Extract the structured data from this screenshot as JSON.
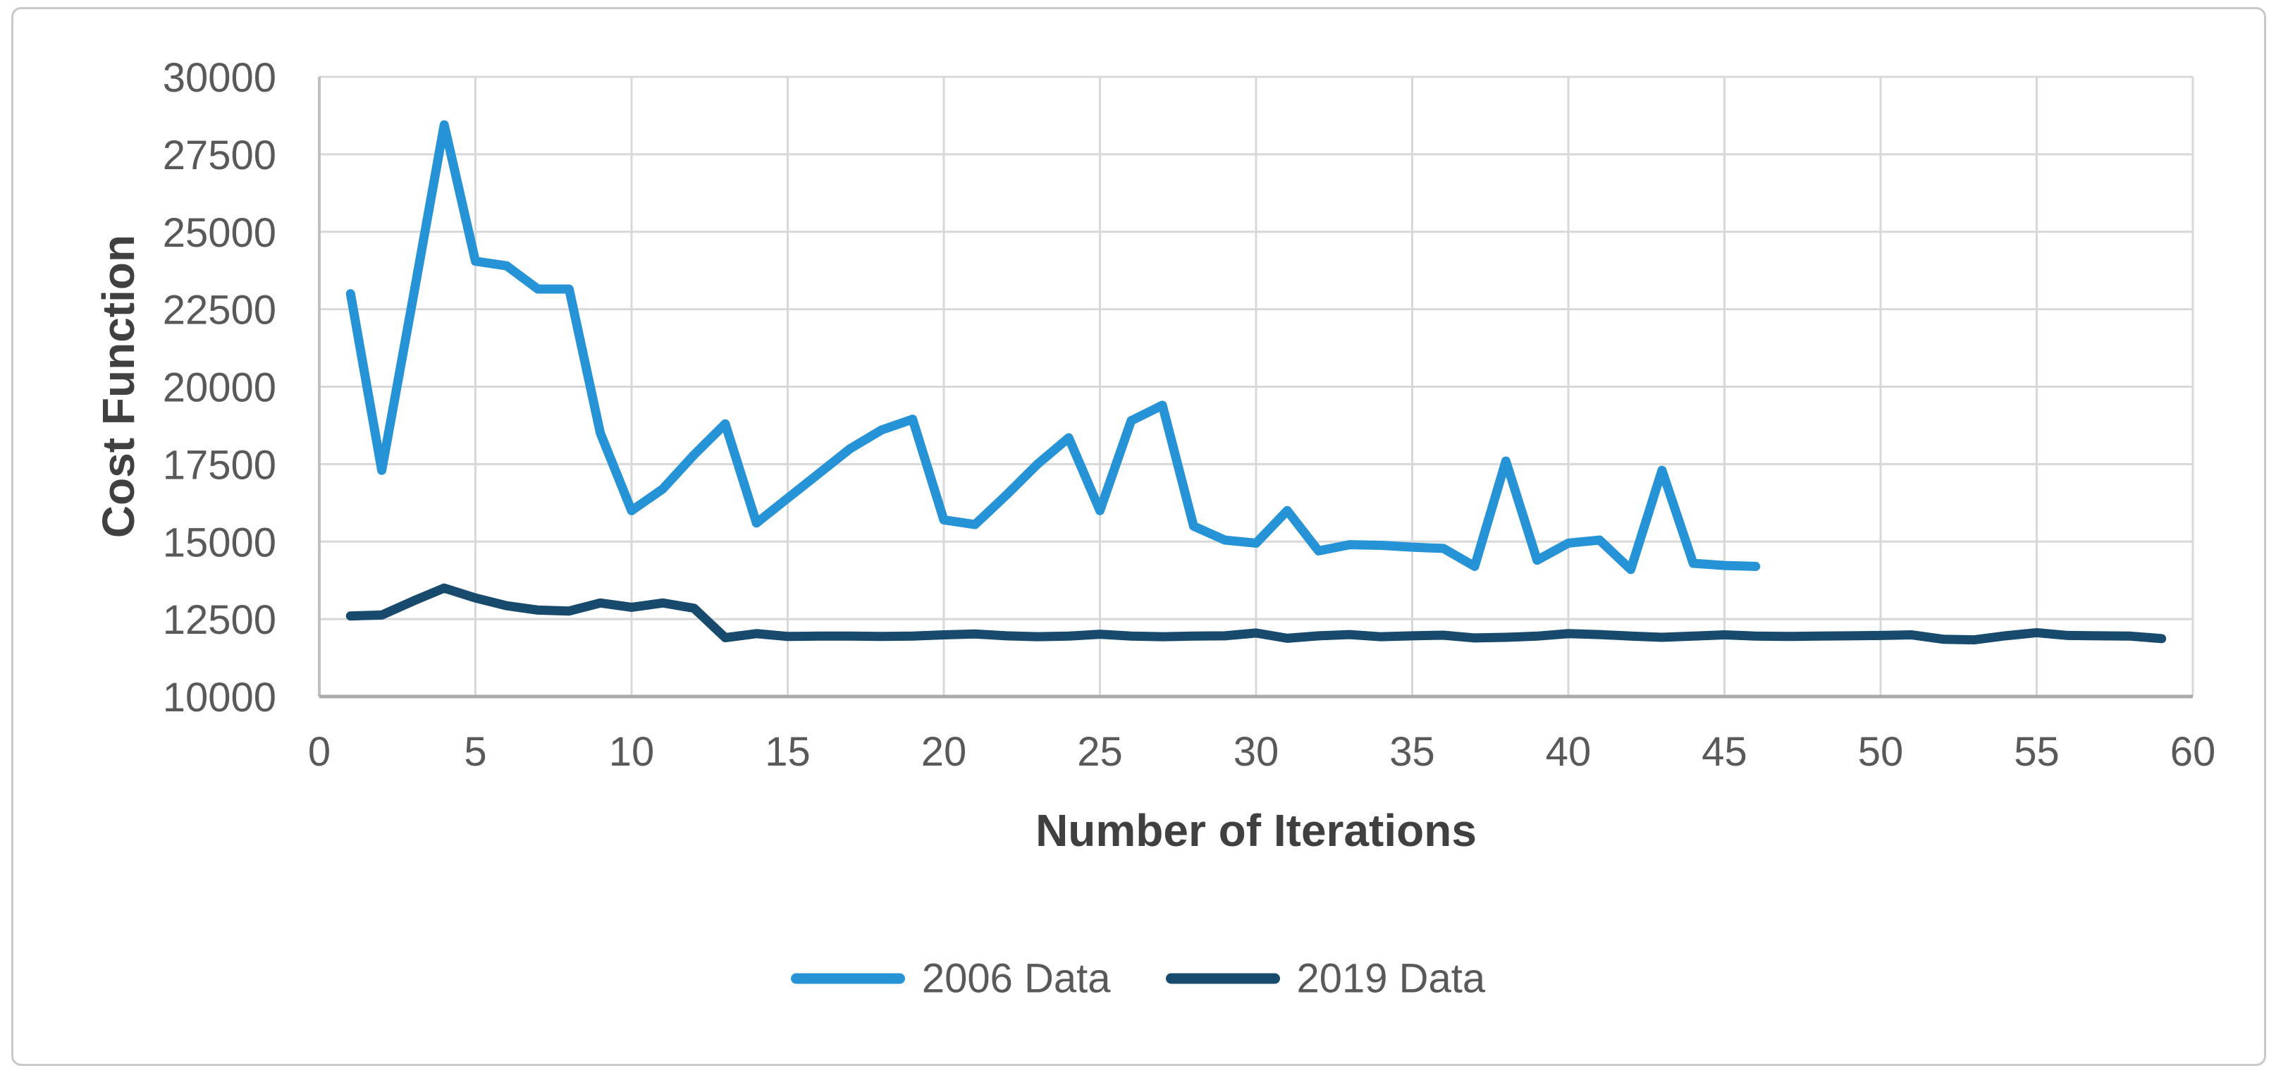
{
  "figure": {
    "background": "#FFFFFF",
    "border_color": "#C9C9C9"
  },
  "chart_data": {
    "type": "line",
    "title": "",
    "xlabel": "Number of Iterations",
    "ylabel": "Cost Function",
    "xlim": [
      0,
      60
    ],
    "ylim": [
      10000,
      30000
    ],
    "xticks": [
      0,
      5,
      10,
      15,
      20,
      25,
      30,
      35,
      40,
      45,
      50,
      55,
      60
    ],
    "yticks": [
      10000,
      12500,
      15000,
      17500,
      20000,
      22500,
      25000,
      27500,
      30000
    ],
    "grid": true,
    "legend_position": "bottom-center",
    "colors": {
      "grid": "#D8D8D8",
      "axis_left": "#BFBFBF",
      "axis_bottom": "#ABABAB",
      "tick_text": "#595959",
      "title_text": "#404040"
    },
    "series": [
      {
        "name": "2006 Data",
        "color": "#2693D6",
        "x": [
          1,
          2,
          3,
          4,
          5,
          6,
          7,
          8,
          9,
          10,
          11,
          12,
          13,
          14,
          15,
          16,
          17,
          18,
          19,
          20,
          21,
          22,
          23,
          24,
          25,
          26,
          27,
          28,
          29,
          30,
          31,
          32,
          33,
          34,
          35,
          36,
          37,
          38,
          39,
          40,
          41,
          42,
          43,
          44,
          45,
          46
        ],
        "values": [
          23000,
          17300,
          22850,
          28450,
          24050,
          23900,
          23150,
          23150,
          18500,
          16000,
          16700,
          17800,
          18800,
          15600,
          16400,
          17200,
          18000,
          18600,
          18950,
          15700,
          15550,
          16500,
          17500,
          18350,
          16000,
          18900,
          19400,
          15500,
          15050,
          14950,
          16000,
          14700,
          14900,
          14880,
          14820,
          14780,
          14200,
          17600,
          14400,
          14950,
          15050,
          14100,
          17300,
          14300,
          14230,
          14200
        ]
      },
      {
        "name": "2019 Data",
        "color": "#174A6C",
        "x": [
          1,
          2,
          3,
          4,
          5,
          6,
          7,
          8,
          9,
          10,
          11,
          12,
          13,
          14,
          15,
          16,
          17,
          18,
          19,
          20,
          21,
          22,
          23,
          24,
          25,
          26,
          27,
          28,
          29,
          30,
          31,
          32,
          33,
          34,
          35,
          36,
          37,
          38,
          39,
          40,
          41,
          42,
          43,
          44,
          45,
          46,
          47,
          48,
          49,
          50,
          51,
          52,
          53,
          54,
          55,
          56,
          57,
          58,
          59
        ],
        "values": [
          12600,
          12630,
          13080,
          13500,
          13180,
          12930,
          12790,
          12760,
          13020,
          12880,
          13020,
          12850,
          11900,
          12030,
          11940,
          11950,
          11950,
          11940,
          11950,
          11990,
          12020,
          11960,
          11930,
          11950,
          12010,
          11950,
          11930,
          11950,
          11960,
          12050,
          11880,
          11960,
          12000,
          11930,
          11960,
          11980,
          11890,
          11910,
          11950,
          12030,
          12000,
          11950,
          11910,
          11950,
          11990,
          11950,
          11940,
          11950,
          11960,
          11970,
          11990,
          11850,
          11830,
          11960,
          12060,
          11970,
          11960,
          11950,
          11870
        ]
      }
    ]
  }
}
